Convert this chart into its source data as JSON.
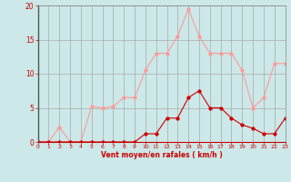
{
  "x": [
    0,
    1,
    2,
    3,
    4,
    5,
    6,
    7,
    8,
    9,
    10,
    11,
    12,
    13,
    14,
    15,
    16,
    17,
    18,
    19,
    20,
    21,
    22,
    23
  ],
  "y_mean": [
    0,
    0,
    0,
    0,
    0,
    0,
    0,
    0,
    0,
    0,
    1.2,
    1.2,
    3.5,
    3.5,
    6.5,
    7.5,
    5.0,
    5.0,
    3.5,
    2.5,
    2.0,
    1.2,
    1.2,
    3.5
  ],
  "y_gust": [
    0,
    0,
    2.2,
    0,
    0,
    5.2,
    5.0,
    5.2,
    6.5,
    6.5,
    10.5,
    13.0,
    13.0,
    15.5,
    19.5,
    15.5,
    13.0,
    13.0,
    13.0,
    10.5,
    5.0,
    6.5,
    11.5,
    11.5
  ],
  "line_color_mean": "#cc0000",
  "line_color_gust": "#ff9999",
  "bg_color": "#cce8e8",
  "grid_color": "#aaaaaa",
  "xlabel": "Vent moyen/en rafales ( km/h )",
  "xlabel_color": "#cc0000",
  "tick_color": "#cc0000",
  "ylim": [
    0,
    20
  ],
  "yticks": [
    0,
    5,
    10,
    15,
    20
  ],
  "xticks": [
    0,
    1,
    2,
    3,
    4,
    5,
    6,
    7,
    8,
    9,
    10,
    11,
    12,
    13,
    14,
    15,
    16,
    17,
    18,
    19,
    20,
    21,
    22,
    23
  ],
  "marker_size": 2.5,
  "linewidth": 0.8
}
